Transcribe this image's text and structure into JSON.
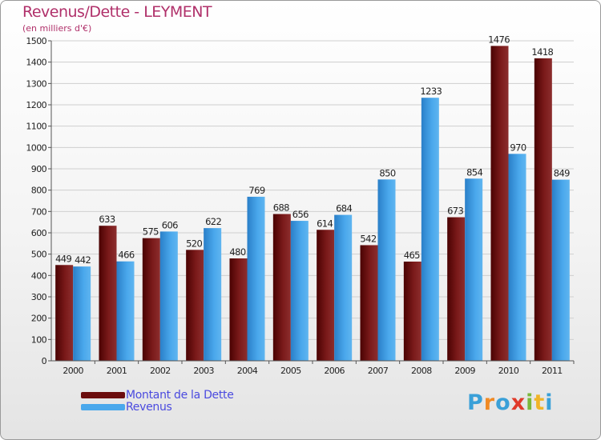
{
  "header": {
    "title": "Revenus/Dette - LEYMENT",
    "subtitle": "(en milliers d'€)"
  },
  "colors": {
    "dette": "#7a1a1a",
    "revenus": "#3a9ee8",
    "text_accent": "#b0306a",
    "legend_text": "#4a4adf"
  },
  "legend": {
    "items": [
      {
        "label": "Montant de la Dette",
        "color": "#6b0d0d"
      },
      {
        "label": "Revenus",
        "color": "#4aa8ec"
      }
    ]
  },
  "logo": {
    "letters": [
      "P",
      "r",
      "o",
      "x",
      "i",
      "t",
      "i"
    ],
    "colors": [
      "#3aa0d8",
      "#f08a24",
      "#3aa0d8",
      "#e03a2a",
      "#7ab83a",
      "#f0b428",
      "#3aa0d8"
    ]
  },
  "chart_data": {
    "type": "bar",
    "title": "Revenus/Dette - LEYMENT",
    "subtitle": "(en milliers d'€)",
    "categories": [
      "2000",
      "2001",
      "2002",
      "2003",
      "2004",
      "2005",
      "2006",
      "2007",
      "2008",
      "2009",
      "2010",
      "2011"
    ],
    "series": [
      {
        "name": "Montant de la Dette",
        "values": [
          449,
          633,
          575,
          520,
          480,
          688,
          614,
          542,
          465,
          673,
          1476,
          1418
        ]
      },
      {
        "name": "Revenus",
        "values": [
          442,
          466,
          606,
          622,
          769,
          656,
          684,
          850,
          1233,
          854,
          970,
          849
        ]
      }
    ],
    "ylim": [
      0,
      1500
    ],
    "yticks": [
      0,
      100,
      200,
      300,
      400,
      500,
      600,
      700,
      800,
      900,
      1000,
      1100,
      1200,
      1300,
      1400,
      1500
    ],
    "grid": true,
    "legend_position": "bottom-left"
  }
}
